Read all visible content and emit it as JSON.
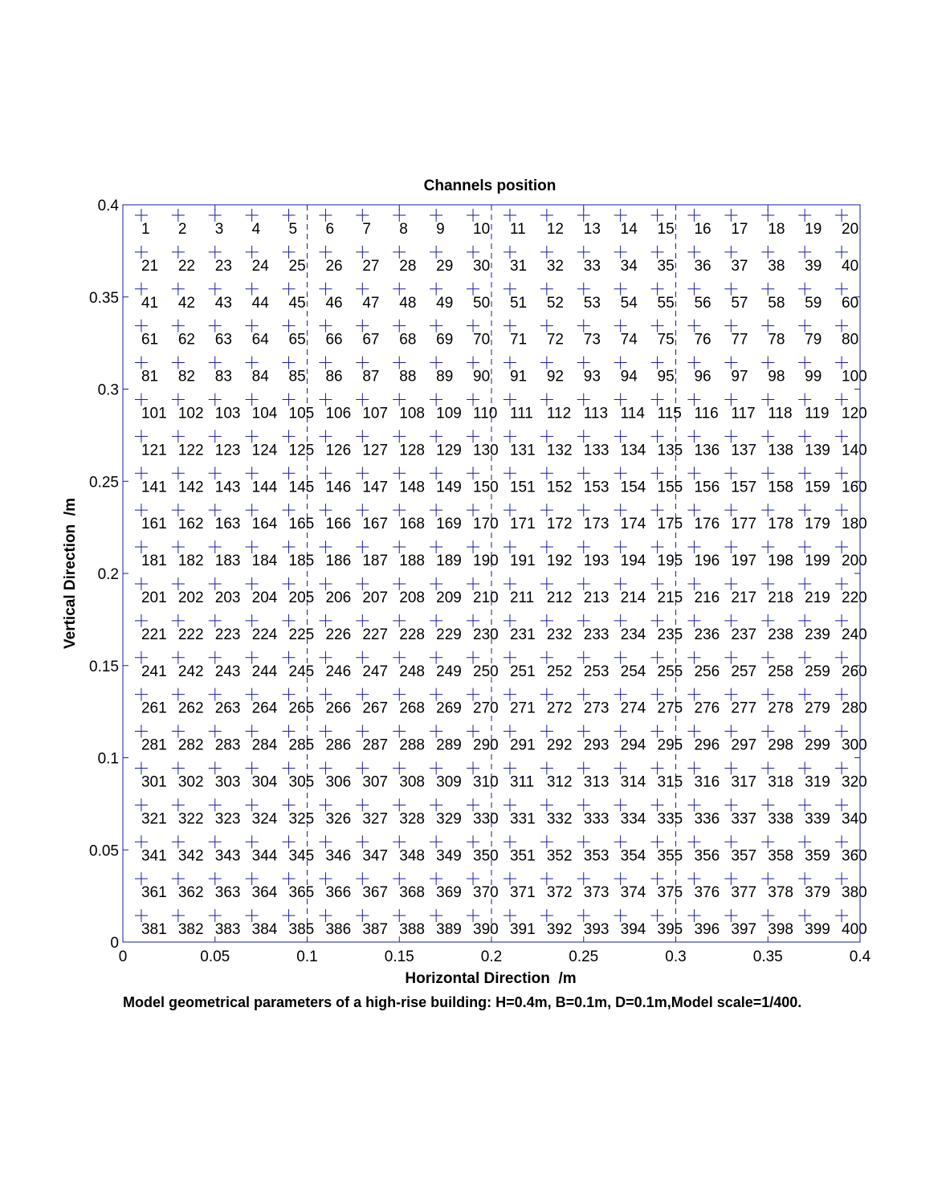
{
  "chart_data": {
    "type": "scatter",
    "title": "Channels position",
    "xlabel": "Horizontal Direction  /m",
    "ylabel": "Vertical Direction  /m",
    "xlim": [
      0,
      0.4
    ],
    "ylim": [
      0,
      0.4
    ],
    "xticks": [
      0,
      0.05,
      0.1,
      0.15,
      0.2,
      0.25,
      0.3,
      0.35,
      0.4
    ],
    "yticks": [
      0,
      0.05,
      0.1,
      0.15,
      0.2,
      0.25,
      0.3,
      0.35,
      0.4
    ],
    "xtick_labels": [
      "0",
      "0.05",
      "0.1",
      "0.15",
      "0.2",
      "0.25",
      "0.3",
      "0.35",
      "0.4"
    ],
    "ytick_labels": [
      "0",
      "0.05",
      "0.1",
      "0.15",
      "0.2",
      "0.25",
      "0.3",
      "0.35",
      "0.4"
    ],
    "marker": "+",
    "marker_color": "#1a1aa6",
    "divider_lines_x": [
      0.1,
      0.2,
      0.3
    ],
    "divider_color": "#1a1aa6",
    "columns_x": [
      0.01,
      0.03,
      0.05,
      0.07,
      0.09,
      0.11,
      0.13,
      0.15,
      0.17,
      0.19,
      0.21,
      0.23,
      0.25,
      0.27,
      0.29,
      0.31,
      0.33,
      0.35,
      0.37,
      0.39
    ],
    "rows_y": [
      0.39,
      0.37,
      0.35,
      0.33,
      0.31,
      0.29,
      0.27,
      0.25,
      0.23,
      0.21,
      0.19,
      0.17,
      0.15,
      0.13,
      0.11,
      0.09,
      0.07,
      0.05,
      0.03,
      0.01
    ],
    "channel_numbering": "row-major from top-left, 1 to 400",
    "channel_count": 400,
    "grid": false
  },
  "caption": "Model geometrical parameters of a high-rise building: H=0.4m, B=0.1m, D=0.1m,Model scale=1/400."
}
